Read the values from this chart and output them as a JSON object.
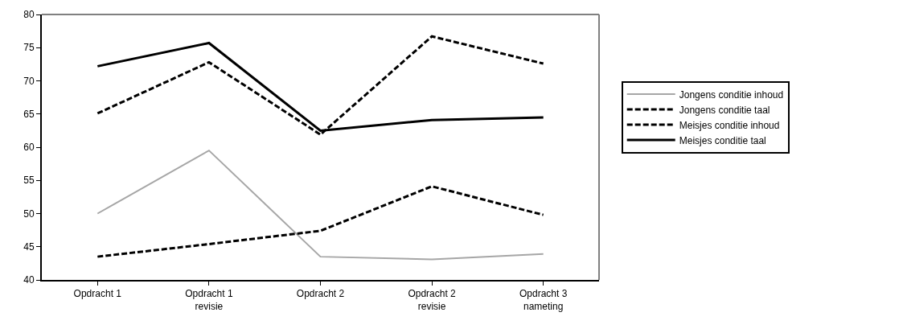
{
  "chart_data": {
    "type": "line",
    "categories": [
      "Opdracht 1",
      "Opdracht 1\nrevisie",
      "Opdracht 2",
      "Opdracht 2\nrevisie",
      "Opdracht 3\nnameting"
    ],
    "series": [
      {
        "name": "Jongens conditie inhoud",
        "color": "#a6a6a6",
        "line_style": "solid",
        "values": [
          50.0,
          59.5,
          43.5,
          43.1,
          43.9
        ]
      },
      {
        "name": "Jongens conditie taal",
        "color": "#000000",
        "line_style": "dashed",
        "values": [
          43.5,
          45.4,
          47.4,
          54.1,
          49.8
        ]
      },
      {
        "name": "Meisjes conditie inhoud",
        "color": "#000000",
        "line_style": "dashed",
        "values": [
          65.1,
          72.8,
          61.9,
          76.7,
          72.6
        ]
      },
      {
        "name": "Meisjes conditie taal",
        "color": "#000000",
        "line_style": "solid",
        "values": [
          72.2,
          75.7,
          62.5,
          64.1,
          64.5
        ]
      }
    ],
    "ylim": [
      40,
      80
    ],
    "yticks": [
      40,
      45,
      50,
      55,
      60,
      65,
      70,
      75,
      80
    ],
    "grid": false,
    "legend": "right",
    "marker": "none"
  }
}
